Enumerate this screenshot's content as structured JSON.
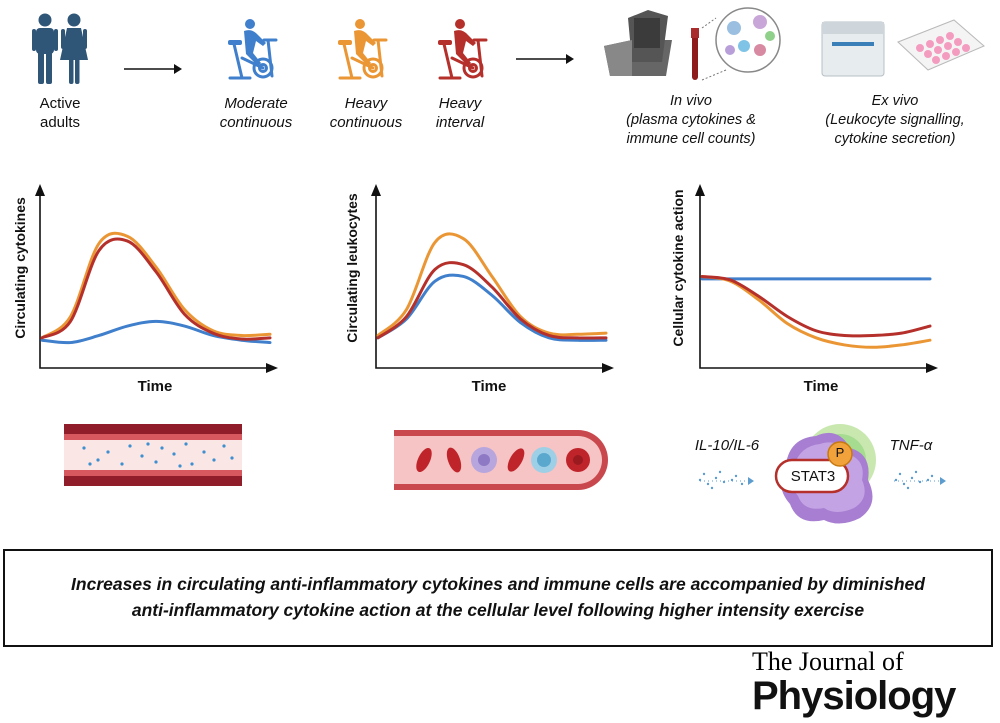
{
  "top": {
    "people_label": [
      "Active",
      "adults"
    ],
    "moderate_label": [
      "Moderate",
      "continuous"
    ],
    "heavy_cont_label": [
      "Heavy",
      "continuous"
    ],
    "heavy_int_label": [
      "Heavy",
      "interval"
    ],
    "invivo_label": [
      "In vivo",
      "(plasma cytokines &",
      "immune cell counts)"
    ],
    "exvivo_label": [
      "Ex vivo",
      "(Leukocyte signalling,",
      "cytokine secretion)"
    ]
  },
  "colors": {
    "moderate": "#3f7fcc",
    "heavy_continuous": "#eb9634",
    "heavy_interval": "#b5302b",
    "people": "#2f5577"
  },
  "chart_data": [
    {
      "type": "line",
      "ylabel": "Circulating cytokines",
      "xlabel": "Time",
      "series": [
        {
          "name": "Moderate continuous",
          "color": "#3f7fcc",
          "values": [
            0.1,
            0.08,
            0.14,
            0.22,
            0.26,
            0.22,
            0.14,
            0.1,
            0.08
          ]
        },
        {
          "name": "Heavy continuous",
          "color": "#eb9634",
          "values": [
            0.12,
            0.3,
            0.92,
            0.98,
            0.72,
            0.36,
            0.18,
            0.14,
            0.15
          ]
        },
        {
          "name": "Heavy interval",
          "color": "#b5302b",
          "values": [
            0.12,
            0.26,
            0.86,
            0.94,
            0.68,
            0.32,
            0.16,
            0.11,
            0.12
          ]
        }
      ]
    },
    {
      "type": "line",
      "ylabel": "Circulating leukocytes",
      "xlabel": "Time",
      "series": [
        {
          "name": "Moderate continuous",
          "color": "#3f7fcc",
          "values": [
            0.12,
            0.28,
            0.6,
            0.64,
            0.48,
            0.25,
            0.12,
            0.1,
            0.1
          ]
        },
        {
          "name": "Heavy continuous",
          "color": "#eb9634",
          "values": [
            0.14,
            0.36,
            0.93,
            0.96,
            0.64,
            0.3,
            0.16,
            0.15,
            0.16
          ]
        },
        {
          "name": "Heavy interval",
          "color": "#b5302b",
          "values": [
            0.12,
            0.3,
            0.7,
            0.74,
            0.55,
            0.28,
            0.14,
            0.12,
            0.12
          ]
        }
      ]
    },
    {
      "type": "line",
      "ylabel": "Cellular cytokine action",
      "xlabel": "Time",
      "series": [
        {
          "name": "Moderate continuous",
          "color": "#3f7fcc",
          "values": [
            0.62,
            0.62,
            0.62,
            0.62,
            0.62,
            0.62,
            0.62,
            0.62,
            0.62
          ]
        },
        {
          "name": "Heavy continuous",
          "color": "#eb9634",
          "values": [
            0.64,
            0.6,
            0.44,
            0.24,
            0.12,
            0.06,
            0.04,
            0.06,
            0.1
          ]
        },
        {
          "name": "Heavy interval",
          "color": "#b5302b",
          "values": [
            0.64,
            0.61,
            0.47,
            0.3,
            0.18,
            0.14,
            0.14,
            0.16,
            0.22
          ]
        }
      ]
    }
  ],
  "cell": {
    "left_label": "IL-10/IL-6",
    "right_label": "TNF-α",
    "stat_label": "STAT3",
    "p_label": "P"
  },
  "summary": [
    "Increases in circulating anti-inflammatory cytokines and immune cells are accompanied by diminished",
    "anti-inflammatory cytokine action at the cellular level following higher intensity exercise"
  ],
  "journal": {
    "line1": "The Journal of",
    "line2": "Physiology"
  }
}
